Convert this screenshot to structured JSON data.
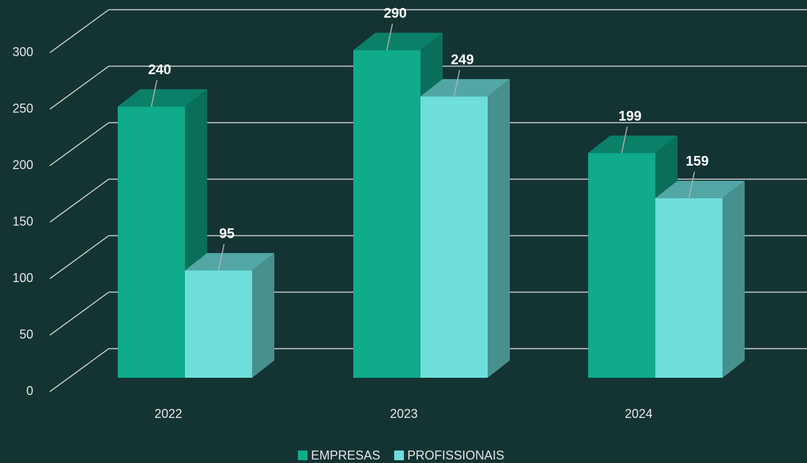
{
  "chart_data": {
    "type": "bar3d",
    "categories": [
      "2022",
      "2023",
      "2024"
    ],
    "series": [
      {
        "name": "EMPRESAS",
        "color": "#0fab8a",
        "values": [
          240,
          290,
          199
        ]
      },
      {
        "name": "PROFISSIONAIS",
        "color": "#6ddedb",
        "values": [
          95,
          249,
          159
        ]
      }
    ],
    "ylim": [
      0,
      300
    ],
    "yticks": [
      0,
      50,
      100,
      150,
      200,
      250,
      300
    ],
    "grid": true,
    "legend": "bottom"
  }
}
